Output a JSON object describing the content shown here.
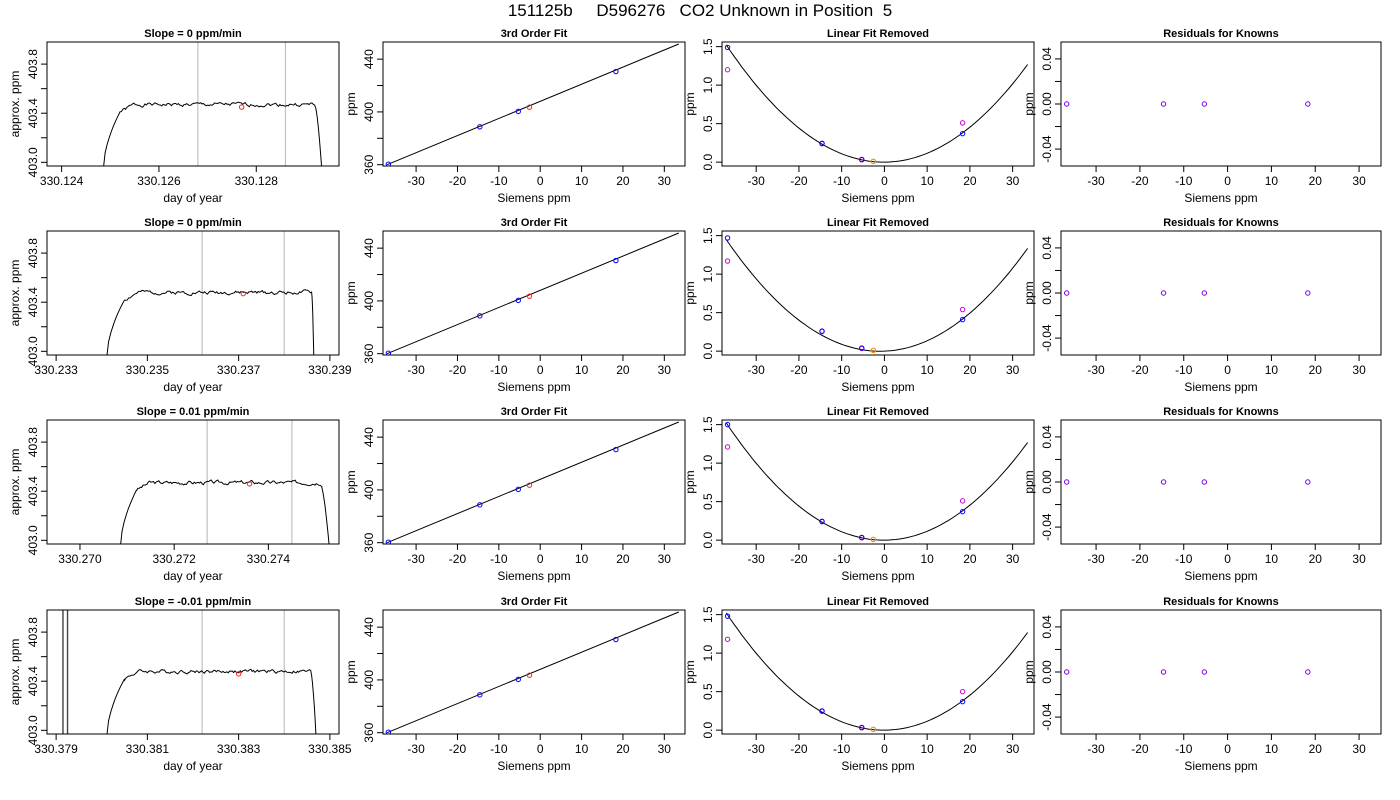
{
  "page": {
    "title": "151125b     D596276   CO2 Unknown in Position  5"
  },
  "colors": {
    "axis": "#000000",
    "line": "#000000",
    "known": "#0000ff",
    "unknown": "#ff2020",
    "fit_unknown": "#ff8c00",
    "raw": "#d400d4",
    "vline": "#c0c0c0"
  },
  "chart_data": [
    {
      "row": 1,
      "type": "line",
      "title": "Slope =  0  ppm/min",
      "xlabel": "day of year",
      "ylabel": "approx. ppm",
      "xlim": [
        330.1237,
        330.1297
      ],
      "ylim": [
        402.97,
        403.98
      ],
      "xticks": [
        330.124,
        330.126,
        330.128
      ],
      "xtick_labels": [
        "330.124",
        "330.126",
        "330.128"
      ],
      "yticks": [
        403.0,
        403.4,
        403.8
      ],
      "ytick_labels": [
        "403.0",
        "403.4",
        "403.8"
      ],
      "yminor": [
        403.2,
        403.6
      ],
      "vlines": [
        330.1268,
        330.1286
      ],
      "signal": {
        "x_start": 330.12485,
        "x_rise_end": 330.1252,
        "x_fall_start": 330.1292,
        "x_end": 330.12935,
        "level": 403.47,
        "seed": 1
      },
      "marker": {
        "x": 330.1277,
        "y": 403.45
      }
    },
    {
      "row": 1,
      "type": "scatter+line",
      "title": "3rd Order Fit",
      "xlabel": "Siemens ppm",
      "ylabel": "ppm",
      "xlim": [
        -38,
        35
      ],
      "ylim": [
        359,
        453
      ],
      "xticks": [
        -30,
        -20,
        -10,
        0,
        10,
        20,
        30
      ],
      "xtick_labels": [
        "-30",
        "-20",
        "-10",
        "0",
        "10",
        "20",
        "30"
      ],
      "yticks": [
        360,
        400,
        440
      ],
      "ytick_labels": [
        "360",
        "400",
        "440"
      ],
      "yminor": [
        380,
        420
      ],
      "line": {
        "x": [
          -37,
          33.5
        ],
        "y": [
          360,
          451.5
        ]
      },
      "points": [
        {
          "x": -36.7,
          "y": 360.4
        },
        {
          "x": -14.6,
          "y": 388.7
        },
        {
          "x": -5.3,
          "y": 400.4
        },
        {
          "x": 18.3,
          "y": 430.6
        }
      ],
      "unknown": {
        "x": -2.6,
        "y": 403.6
      }
    },
    {
      "row": 1,
      "type": "scatter+curve",
      "title": "Linear Fit Removed",
      "xlabel": "Siemens ppm",
      "ylabel": "ppm",
      "xlim": [
        -38,
        35
      ],
      "ylim": [
        -0.05,
        1.56
      ],
      "xticks": [
        -30,
        -20,
        -10,
        0,
        10,
        20,
        30
      ],
      "xtick_labels": [
        "-30",
        "-20",
        "-10",
        "0",
        "10",
        "20",
        "30"
      ],
      "yticks": [
        0.0,
        0.5,
        1.0,
        1.5
      ],
      "ytick_labels": [
        "0.0",
        "0.5",
        "1.0",
        "1.5"
      ],
      "curve": {
        "a": 0.00112,
        "b": 0.0003,
        "x_range": [
          -37,
          33.5
        ]
      },
      "points": [
        {
          "x": -36.7,
          "y": 1.49
        },
        {
          "x": -14.6,
          "y": 0.245
        },
        {
          "x": -5.3,
          "y": 0.035
        },
        {
          "x": 18.3,
          "y": 0.37
        }
      ],
      "raw_points": [
        {
          "x": -36.7,
          "y": 1.2
        },
        {
          "x": -14.6,
          "y": 0.24
        },
        {
          "x": -5.3,
          "y": 0.03
        },
        {
          "x": 18.3,
          "y": 0.51
        }
      ],
      "unknown": {
        "x": -2.6,
        "y": 0.01
      }
    },
    {
      "row": 1,
      "type": "scatter",
      "title": "Residuals for Knowns",
      "xlabel": "Siemens ppm",
      "ylabel": "ppm",
      "xlim": [
        -38,
        35
      ],
      "ylim": [
        -0.055,
        0.055
      ],
      "xticks": [
        -30,
        -20,
        -10,
        0,
        10,
        20,
        30
      ],
      "xtick_labels": [
        "-30",
        "-20",
        "-10",
        "0",
        "10",
        "20",
        "30"
      ],
      "yticks": [
        -0.04,
        0.0,
        0.04
      ],
      "ytick_labels": [
        "-0.04",
        "0.00",
        "0.04"
      ],
      "yminor": [
        -0.02,
        0.02
      ],
      "points": [
        {
          "x": -36.7,
          "y": 0.0
        },
        {
          "x": -14.6,
          "y": 0.0
        },
        {
          "x": -5.3,
          "y": 0.0
        },
        {
          "x": 18.3,
          "y": 0.0
        }
      ]
    },
    {
      "row": 2,
      "type": "line",
      "title": "Slope =  0  ppm/min",
      "xlabel": "day of year",
      "ylabel": "approx. ppm",
      "xlim": [
        330.2328,
        330.2392
      ],
      "ylim": [
        402.97,
        403.98
      ],
      "xticks": [
        330.233,
        330.235,
        330.237,
        330.239
      ],
      "xtick_labels": [
        "330.233",
        "330.235",
        "330.237",
        "330.239"
      ],
      "yticks": [
        403.0,
        403.4,
        403.8
      ],
      "ytick_labels": [
        "403.0",
        "403.4",
        "403.8"
      ],
      "yminor": [
        403.2,
        403.6
      ],
      "vlines": [
        330.2362,
        330.238
      ],
      "signal": {
        "x_start": 330.2341,
        "x_rise_end": 330.2345,
        "x_fall_start": 330.2386,
        "x_end": 330.23865,
        "level": 403.48,
        "seed": 2
      },
      "marker": {
        "x": 330.2371,
        "y": 403.47
      }
    },
    {
      "row": 2,
      "type": "scatter+line",
      "title": "3rd Order Fit",
      "xlabel": "Siemens ppm",
      "ylabel": "ppm",
      "xlim": [
        -38,
        35
      ],
      "ylim": [
        359,
        453
      ],
      "xticks": [
        -30,
        -20,
        -10,
        0,
        10,
        20,
        30
      ],
      "xtick_labels": [
        "-30",
        "-20",
        "-10",
        "0",
        "10",
        "20",
        "30"
      ],
      "yticks": [
        360,
        400,
        440
      ],
      "ytick_labels": [
        "360",
        "400",
        "440"
      ],
      "yminor": [
        380,
        420
      ],
      "line": {
        "x": [
          -37,
          33.5
        ],
        "y": [
          360,
          451.5
        ]
      },
      "points": [
        {
          "x": -36.7,
          "y": 360.4
        },
        {
          "x": -14.6,
          "y": 388.7
        },
        {
          "x": -5.3,
          "y": 400.4
        },
        {
          "x": 18.3,
          "y": 430.6
        }
      ],
      "unknown": {
        "x": -2.6,
        "y": 403.6
      }
    },
    {
      "row": 2,
      "type": "scatter+curve",
      "title": "Linear Fit Removed",
      "xlabel": "Siemens ppm",
      "ylabel": "ppm",
      "xlim": [
        -38,
        35
      ],
      "ylim": [
        -0.05,
        1.56
      ],
      "xticks": [
        -30,
        -20,
        -10,
        0,
        10,
        20,
        30
      ],
      "xtick_labels": [
        "-30",
        "-20",
        "-10",
        "0",
        "10",
        "20",
        "30"
      ],
      "yticks": [
        0.0,
        0.5,
        1.0,
        1.5
      ],
      "ytick_labels": [
        "0.0",
        "0.5",
        "1.0",
        "1.5"
      ],
      "curve": {
        "a": 0.00112,
        "b": 0.0023,
        "x_range": [
          -37,
          33.5
        ]
      },
      "points": [
        {
          "x": -36.7,
          "y": 1.47
        },
        {
          "x": -14.6,
          "y": 0.26
        },
        {
          "x": -5.3,
          "y": 0.04
        },
        {
          "x": 18.3,
          "y": 0.41
        }
      ],
      "raw_points": [
        {
          "x": -36.7,
          "y": 1.17
        },
        {
          "x": -14.6,
          "y": 0.255
        },
        {
          "x": -5.3,
          "y": 0.035
        },
        {
          "x": 18.3,
          "y": 0.54
        }
      ],
      "unknown": {
        "x": -2.6,
        "y": 0.01
      }
    },
    {
      "row": 2,
      "type": "scatter",
      "title": "Residuals for Knowns",
      "xlabel": "Siemens ppm",
      "ylabel": "ppm",
      "xlim": [
        -38,
        35
      ],
      "ylim": [
        -0.055,
        0.055
      ],
      "xticks": [
        -30,
        -20,
        -10,
        0,
        10,
        20,
        30
      ],
      "xtick_labels": [
        "-30",
        "-20",
        "-10",
        "0",
        "10",
        "20",
        "30"
      ],
      "yticks": [
        -0.04,
        0.0,
        0.04
      ],
      "ytick_labels": [
        "-0.04",
        "0.00",
        "0.04"
      ],
      "yminor": [
        -0.02,
        0.02
      ],
      "points": [
        {
          "x": -36.7,
          "y": 0.0
        },
        {
          "x": -14.6,
          "y": 0.0
        },
        {
          "x": -5.3,
          "y": 0.0
        },
        {
          "x": 18.3,
          "y": 0.0
        }
      ]
    },
    {
      "row": 3,
      "type": "line",
      "title": "Slope =  0.01  ppm/min",
      "xlabel": "day of year",
      "ylabel": "approx. ppm",
      "xlim": [
        330.2693,
        330.2755
      ],
      "ylim": [
        402.97,
        403.98
      ],
      "xticks": [
        330.27,
        330.272,
        330.274
      ],
      "xtick_labels": [
        "330.270",
        "330.272",
        "330.274"
      ],
      "yticks": [
        403.0,
        403.4,
        403.8
      ],
      "ytick_labels": [
        "403.0",
        "403.4",
        "403.8"
      ],
      "yminor": [
        403.2,
        403.6
      ],
      "vlines": [
        330.2727,
        330.2745
      ],
      "signal": {
        "x_start": 330.27085,
        "x_rise_end": 330.2712,
        "x_fall_start": 330.2751,
        "x_end": 330.2753,
        "level": 403.47,
        "seed": 3
      },
      "marker": {
        "x": 330.2736,
        "y": 403.46
      }
    },
    {
      "row": 3,
      "type": "scatter+line",
      "title": "3rd Order Fit",
      "xlabel": "Siemens ppm",
      "ylabel": "ppm",
      "xlim": [
        -38,
        35
      ],
      "ylim": [
        359,
        453
      ],
      "xticks": [
        -30,
        -20,
        -10,
        0,
        10,
        20,
        30
      ],
      "xtick_labels": [
        "-30",
        "-20",
        "-10",
        "0",
        "10",
        "20",
        "30"
      ],
      "yticks": [
        360,
        400,
        440
      ],
      "ytick_labels": [
        "360",
        "400",
        "440"
      ],
      "yminor": [
        380,
        420
      ],
      "line": {
        "x": [
          -37,
          33.5
        ],
        "y": [
          360,
          451.5
        ]
      },
      "points": [
        {
          "x": -36.7,
          "y": 360.4
        },
        {
          "x": -14.6,
          "y": 388.7
        },
        {
          "x": -5.3,
          "y": 400.4
        },
        {
          "x": 18.3,
          "y": 430.6
        }
      ],
      "unknown": {
        "x": -2.6,
        "y": 403.6
      }
    },
    {
      "row": 3,
      "type": "scatter+curve",
      "title": "Linear Fit Removed",
      "xlabel": "Siemens ppm",
      "ylabel": "ppm",
      "xlim": [
        -38,
        35
      ],
      "ylim": [
        -0.05,
        1.56
      ],
      "xticks": [
        -30,
        -20,
        -10,
        0,
        10,
        20,
        30
      ],
      "xtick_labels": [
        "-30",
        "-20",
        "-10",
        "0",
        "10",
        "20",
        "30"
      ],
      "yticks": [
        0.0,
        0.5,
        1.0,
        1.5
      ],
      "ytick_labels": [
        "0.0",
        "0.5",
        "1.0",
        "1.5"
      ],
      "curve": {
        "a": 0.00112,
        "b": 0.0003,
        "x_range": [
          -37,
          33.5
        ]
      },
      "points": [
        {
          "x": -36.7,
          "y": 1.5
        },
        {
          "x": -14.6,
          "y": 0.245
        },
        {
          "x": -5.3,
          "y": 0.035
        },
        {
          "x": 18.3,
          "y": 0.37
        }
      ],
      "raw_points": [
        {
          "x": -36.7,
          "y": 1.21
        },
        {
          "x": -14.6,
          "y": 0.24
        },
        {
          "x": -5.3,
          "y": 0.03
        },
        {
          "x": 18.3,
          "y": 0.51
        }
      ],
      "unknown": {
        "x": -2.6,
        "y": 0.01
      }
    },
    {
      "row": 3,
      "type": "scatter",
      "title": "Residuals for Knowns",
      "xlabel": "Siemens ppm",
      "ylabel": "ppm",
      "xlim": [
        -38,
        35
      ],
      "ylim": [
        -0.055,
        0.055
      ],
      "xticks": [
        -30,
        -20,
        -10,
        0,
        10,
        20,
        30
      ],
      "xtick_labels": [
        "-30",
        "-20",
        "-10",
        "0",
        "10",
        "20",
        "30"
      ],
      "yticks": [
        -0.04,
        0.0,
        0.04
      ],
      "ytick_labels": [
        "-0.04",
        "0.00",
        "0.04"
      ],
      "yminor": [
        -0.02,
        0.02
      ],
      "points": [
        {
          "x": -36.7,
          "y": 0.0
        },
        {
          "x": -14.6,
          "y": 0.0
        },
        {
          "x": -5.3,
          "y": 0.0
        },
        {
          "x": 18.3,
          "y": 0.0
        }
      ]
    },
    {
      "row": 4,
      "type": "line",
      "title": "Slope =  -0.01  ppm/min",
      "xlabel": "day of year",
      "ylabel": "approx. ppm",
      "xlim": [
        330.3788,
        330.3852
      ],
      "ylim": [
        402.97,
        403.98
      ],
      "xticks": [
        330.379,
        330.381,
        330.383,
        330.385
      ],
      "xtick_labels": [
        "330.379",
        "330.381",
        "330.383",
        "330.385"
      ],
      "yticks": [
        403.0,
        403.4,
        403.8
      ],
      "ytick_labels": [
        "403.0",
        "403.4",
        "403.8"
      ],
      "yminor": [
        403.2,
        403.6
      ],
      "vlines": [
        330.3822,
        330.384
      ],
      "dark_vlines": [
        330.37915,
        330.37925
      ],
      "signal": {
        "x_start": 330.3801,
        "x_rise_end": 330.3805,
        "x_fall_start": 330.38458,
        "x_end": 330.3847,
        "level": 403.48,
        "seed": 4
      },
      "marker": {
        "x": 330.383,
        "y": 403.46
      }
    },
    {
      "row": 4,
      "type": "scatter+line",
      "title": "3rd Order Fit",
      "xlabel": "Siemens ppm",
      "ylabel": "ppm",
      "xlim": [
        -38,
        35
      ],
      "ylim": [
        359,
        453
      ],
      "xticks": [
        -30,
        -20,
        -10,
        0,
        10,
        20,
        30
      ],
      "xtick_labels": [
        "-30",
        "-20",
        "-10",
        "0",
        "10",
        "20",
        "30"
      ],
      "yticks": [
        360,
        400,
        440
      ],
      "ytick_labels": [
        "360",
        "400",
        "440"
      ],
      "yminor": [
        380,
        420
      ],
      "line": {
        "x": [
          -37,
          33.5
        ],
        "y": [
          360,
          451.5
        ]
      },
      "points": [
        {
          "x": -36.7,
          "y": 360.4
        },
        {
          "x": -14.6,
          "y": 388.7
        },
        {
          "x": -5.3,
          "y": 400.4
        },
        {
          "x": 18.3,
          "y": 430.6
        }
      ],
      "unknown": {
        "x": -2.6,
        "y": 403.6
      }
    },
    {
      "row": 4,
      "type": "scatter+curve",
      "title": "Linear Fit Removed",
      "xlabel": "Siemens ppm",
      "ylabel": "ppm",
      "xlim": [
        -38,
        35
      ],
      "ylim": [
        -0.05,
        1.56
      ],
      "xticks": [
        -30,
        -20,
        -10,
        0,
        10,
        20,
        30
      ],
      "xtick_labels": [
        "-30",
        "-20",
        "-10",
        "0",
        "10",
        "20",
        "30"
      ],
      "yticks": [
        0.0,
        0.5,
        1.0,
        1.5
      ],
      "ytick_labels": [
        "0.0",
        "0.5",
        "1.0",
        "1.5"
      ],
      "curve": {
        "a": 0.00112,
        "b": 0.0003,
        "x_range": [
          -37,
          33.5
        ]
      },
      "points": [
        {
          "x": -36.7,
          "y": 1.48
        },
        {
          "x": -14.6,
          "y": 0.25
        },
        {
          "x": -5.3,
          "y": 0.035
        },
        {
          "x": 18.3,
          "y": 0.37
        }
      ],
      "raw_points": [
        {
          "x": -36.7,
          "y": 1.18
        },
        {
          "x": -14.6,
          "y": 0.245
        },
        {
          "x": -5.3,
          "y": 0.03
        },
        {
          "x": 18.3,
          "y": 0.5
        }
      ],
      "unknown": {
        "x": -2.6,
        "y": 0.01
      }
    },
    {
      "row": 4,
      "type": "scatter",
      "title": "Residuals for Knowns",
      "xlabel": "Siemens ppm",
      "ylabel": "ppm",
      "xlim": [
        -38,
        35
      ],
      "ylim": [
        -0.055,
        0.055
      ],
      "xticks": [
        -30,
        -20,
        -10,
        0,
        10,
        20,
        30
      ],
      "xtick_labels": [
        "-30",
        "-20",
        "-10",
        "0",
        "10",
        "20",
        "30"
      ],
      "yticks": [
        -0.04,
        0.0,
        0.04
      ],
      "ytick_labels": [
        "-0.04",
        "0.00",
        "0.04"
      ],
      "yminor": [
        -0.02,
        0.02
      ],
      "points": [
        {
          "x": -36.7,
          "y": 0.0
        },
        {
          "x": -14.6,
          "y": 0.0
        },
        {
          "x": -5.3,
          "y": 0.0
        },
        {
          "x": 18.3,
          "y": 0.0
        }
      ]
    }
  ]
}
